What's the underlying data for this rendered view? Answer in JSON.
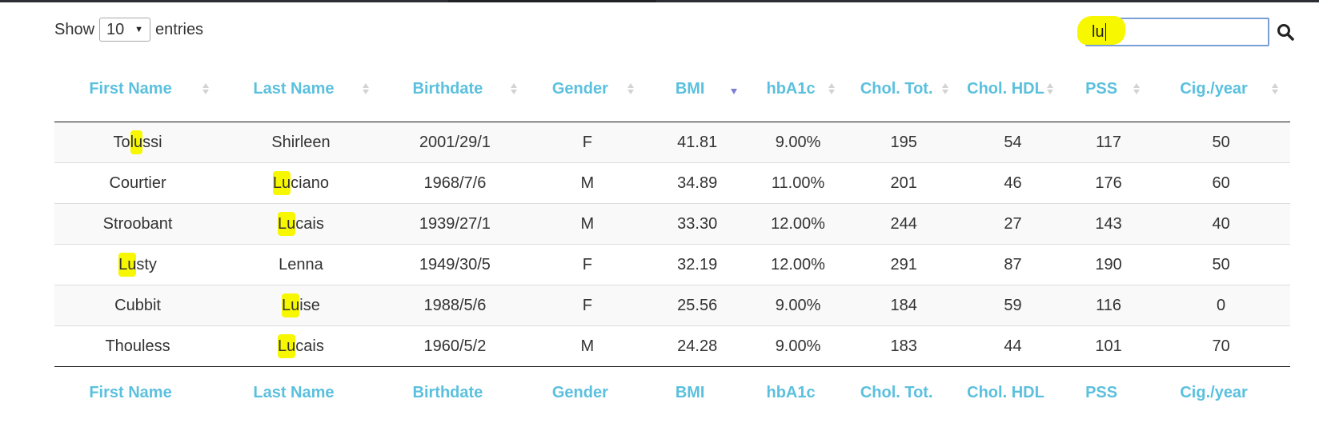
{
  "controls": {
    "show_label": "Show",
    "entries_value": "10",
    "entries_label": "entries",
    "search_value": "lu"
  },
  "columns": [
    "First Name",
    "Last Name",
    "Birthdate",
    "Gender",
    "BMI",
    "hbA1c",
    "Chol. Tot.",
    "Chol. HDL",
    "PSS",
    "Cig./year"
  ],
  "active_sort": {
    "column": "BMI",
    "direction": "descending"
  },
  "rows": [
    {
      "first_name": [
        "To",
        "lu",
        "ssi"
      ],
      "last_name": [
        "",
        "",
        "Shirleen"
      ],
      "birthdate": "2001/29/1",
      "gender": "F",
      "bmi": "41.81",
      "hba1c": "9.00%",
      "chol_tot": "195",
      "chol_hdl": "54",
      "pss": "117",
      "cig": "50"
    },
    {
      "first_name": [
        "",
        "",
        "Courtier"
      ],
      "last_name": [
        "",
        "Lu",
        "ciano"
      ],
      "birthdate": "1968/7/6",
      "gender": "M",
      "bmi": "34.89",
      "hba1c": "11.00%",
      "chol_tot": "201",
      "chol_hdl": "46",
      "pss": "176",
      "cig": "60"
    },
    {
      "first_name": [
        "",
        "",
        "Stroobant"
      ],
      "last_name": [
        "",
        "Lu",
        "cais"
      ],
      "birthdate": "1939/27/1",
      "gender": "M",
      "bmi": "33.30",
      "hba1c": "12.00%",
      "chol_tot": "244",
      "chol_hdl": "27",
      "pss": "143",
      "cig": "40"
    },
    {
      "first_name": [
        "",
        "Lu",
        "sty"
      ],
      "last_name": [
        "",
        "",
        "Lenna"
      ],
      "birthdate": "1949/30/5",
      "gender": "F",
      "bmi": "32.19",
      "hba1c": "12.00%",
      "chol_tot": "291",
      "chol_hdl": "87",
      "pss": "190",
      "cig": "50"
    },
    {
      "first_name": [
        "",
        "",
        "Cubbit"
      ],
      "last_name": [
        "",
        "Lu",
        "ise"
      ],
      "birthdate": "1988/5/6",
      "gender": "F",
      "bmi": "25.56",
      "hba1c": "9.00%",
      "chol_tot": "184",
      "chol_hdl": "59",
      "pss": "116",
      "cig": "0"
    },
    {
      "first_name": [
        "",
        "",
        "Thouless"
      ],
      "last_name": [
        "",
        "Lu",
        "cais"
      ],
      "birthdate": "1960/5/2",
      "gender": "M",
      "bmi": "24.28",
      "hba1c": "9.00%",
      "chol_tot": "183",
      "chol_hdl": "44",
      "pss": "101",
      "cig": "70"
    }
  ],
  "colors": {
    "header_text": "#5bc0de",
    "highlight": "#f7f700",
    "active_sort_arrow": "#7b7fd4",
    "search_border": "#7a9fd6"
  }
}
